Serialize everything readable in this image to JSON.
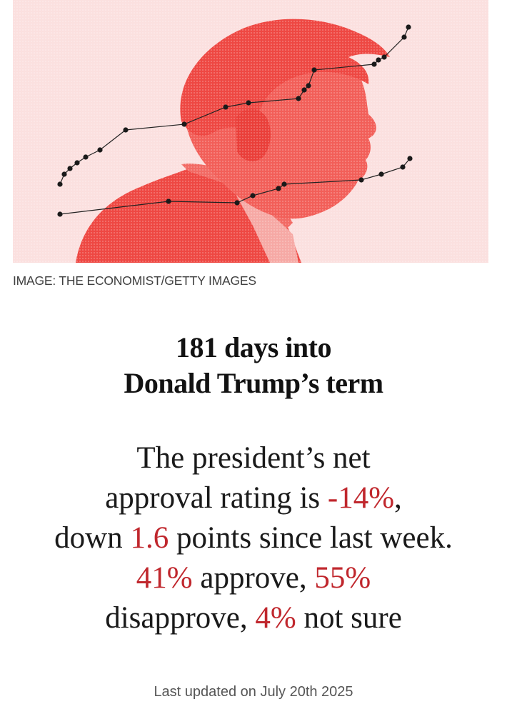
{
  "image": {
    "caption": "IMAGE: THE ECONOMIST/GETTY IMAGES",
    "background_color": "#fbe0df",
    "figure_color": "#ef4a45"
  },
  "headline": {
    "line1": "181 days into",
    "line2": "Donald Trump’s term"
  },
  "summary": {
    "line1": "The president’s net",
    "line2_prefix": "approval rating is ",
    "net_approval": "-14%",
    "line2_suffix": ",",
    "line3_prefix": "down ",
    "change_points": "1.6",
    "line3_suffix": " points since last week.",
    "approve": "41%",
    "approve_label": " approve, ",
    "disapprove": "55%",
    "disapprove_label": "disapprove, ",
    "not_sure": "4%",
    "not_sure_label": " not sure",
    "highlight_color": "#c0272d"
  },
  "footer": {
    "last_updated": "Last updated on July 20th 2025"
  }
}
